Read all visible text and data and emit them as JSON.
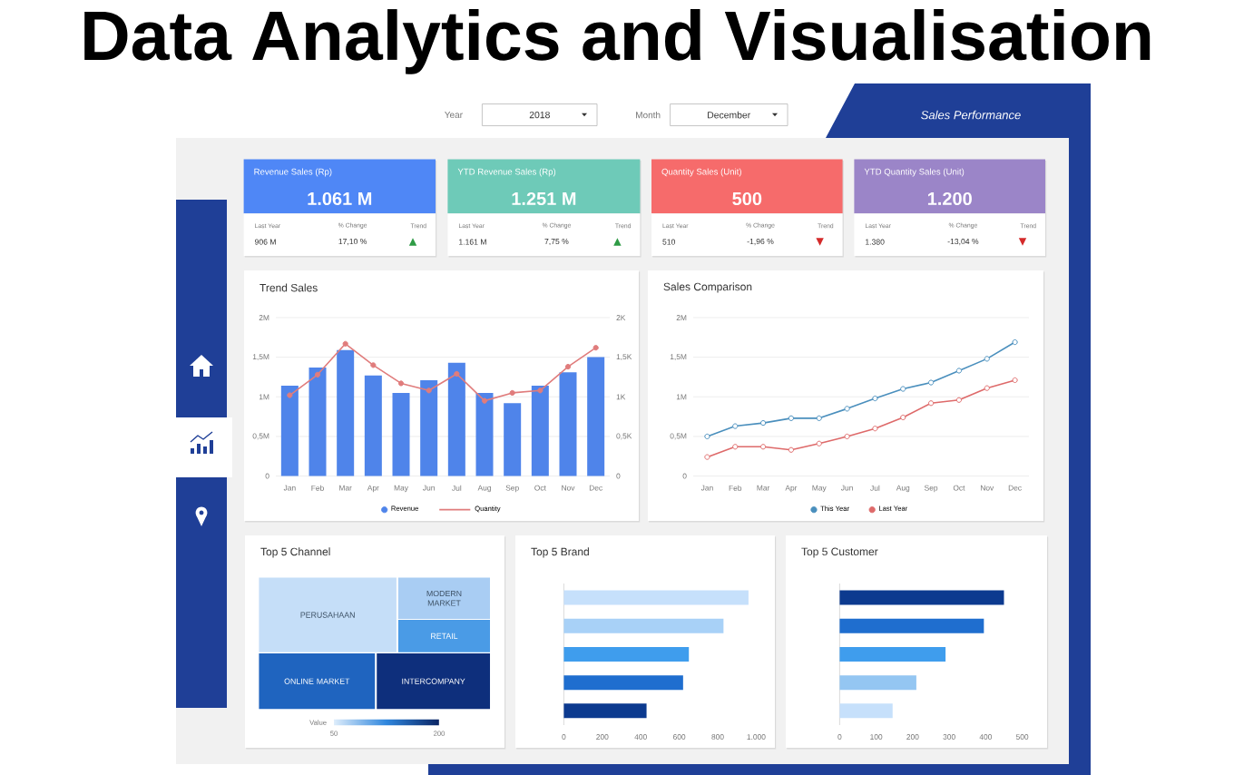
{
  "chart_data": [
    {
      "type": "other",
      "title": "Data Analytics and Visualisation",
      "annotations": [
        "Year",
        "2018",
        "Month",
        "December",
        "Sales Performance"
      ]
    },
    {
      "type": "other",
      "title": "Revenue Sales (Rp)",
      "annotations": [
        "1.061 M",
        "Last Year",
        "906 M",
        "% Change",
        "17,10 %",
        "Trend",
        "▲"
      ],
      "colors": [
        "#4f87f6",
        "#2e9b45"
      ]
    },
    {
      "type": "other",
      "title": "YTD Revenue Sales (Rp)",
      "annotations": [
        "1.251 M",
        "Last Year",
        "1.161 M",
        "% Change",
        "7,75 %",
        "Trend",
        "▲"
      ],
      "colors": [
        "#6ecab8",
        "#2e9b45"
      ]
    },
    {
      "type": "other",
      "title": "Quantity Sales (Unit)",
      "annotations": [
        "500",
        "Last Year",
        "510",
        "% Change",
        "-1,96 %",
        "Trend",
        "▼"
      ],
      "colors": [
        "#f66b6b",
        "#d42a2a"
      ]
    },
    {
      "type": "other",
      "title": "YTD Quantity Sales (Unit)",
      "annotations": [
        "1.200",
        "Last Year",
        "1.380",
        "% Change",
        "-13,04 %",
        "Trend",
        "▼"
      ],
      "colors": [
        "#9b85c8",
        "#d42a2a"
      ]
    },
    {
      "type": "bar",
      "title": "Trend Sales",
      "categories": [
        "Jan",
        "Feb",
        "Mar",
        "Apr",
        "May",
        "Jun",
        "Jul",
        "Aug",
        "Sep",
        "Oct",
        "Nov",
        "Dec"
      ],
      "series": [
        {
          "name": "Revenue",
          "type": "bar",
          "color": "#4f84ea",
          "values": [
            1140000,
            1370000,
            1590000,
            1270000,
            1050000,
            1210000,
            1430000,
            1050000,
            920000,
            1140000,
            1310000,
            1500000
          ]
        },
        {
          "name": "Quantity",
          "type": "line",
          "axis": "y2",
          "color": "#e07c7c",
          "values": [
            1020,
            1280,
            1670,
            1400,
            1170,
            1080,
            1290,
            950,
            1050,
            1080,
            1380,
            1620
          ]
        }
      ],
      "ylim": [
        0,
        2000000
      ],
      "yticks": [
        0,
        {
          "value": 500000,
          "label": "0,5M"
        },
        {
          "value": 1000000,
          "label": "1M"
        },
        {
          "value": 1500000,
          "label": "1,5M"
        },
        {
          "value": 2000000,
          "label": "2M"
        }
      ],
      "y2lim": [
        0,
        2000
      ],
      "y2ticks": [
        0,
        {
          "value": 500,
          "label": "0,5K"
        },
        {
          "value": 1000,
          "label": "1K"
        },
        {
          "value": 1500,
          "label": "1,5K"
        },
        {
          "value": 2000,
          "label": "2K"
        }
      ],
      "grid": "y",
      "legend": "bottom",
      "marker": "circle"
    },
    {
      "type": "line",
      "title": "Sales Comparison",
      "categories": [
        "Jan",
        "Feb",
        "Mar",
        "Apr",
        "May",
        "Jun",
        "Jul",
        "Aug",
        "Sep",
        "Oct",
        "Nov",
        "Dec"
      ],
      "series": [
        {
          "name": "This Year",
          "color": "#4a8fbd",
          "values": [
            500000,
            630000,
            670000,
            730000,
            730000,
            850000,
            980000,
            1100000,
            1180000,
            1330000,
            1480000,
            1690000
          ]
        },
        {
          "name": "Last Year",
          "color": "#de6a6a",
          "values": [
            240000,
            370000,
            370000,
            330000,
            410000,
            500000,
            600000,
            740000,
            920000,
            960000,
            1110000,
            1210000
          ]
        }
      ],
      "ylim": [
        0,
        2000000
      ],
      "yticks": [
        0,
        {
          "value": 500000,
          "label": "0,5M"
        },
        {
          "value": 1000000,
          "label": "1M"
        },
        {
          "value": 1500000,
          "label": "1,5M"
        },
        {
          "value": 2000000,
          "label": "2M"
        }
      ],
      "grid": "y",
      "legend": "bottom",
      "marker": "circle"
    },
    {
      "type": "other",
      "title": "Top 5 Channel",
      "categories": [
        "PERUSAHAAN",
        "MODERN MARKET",
        "RETAIL",
        "ONLINE MARKET",
        "INTERCOMPANY"
      ],
      "colors": [
        "#c5def8",
        "#a9cdf3",
        "#4a9be6",
        "#1f64bf",
        "#0e2f7c"
      ],
      "clabel": "Value",
      "annotations": [
        "50",
        "200"
      ]
    },
    {
      "type": "bar",
      "orientation": "horizontal",
      "title": "Top 5 Brand",
      "categories": [
        null,
        null,
        null,
        null,
        null
      ],
      "values": [
        960,
        830,
        650,
        620,
        430
      ],
      "colors": [
        "#c6e0fb",
        "#a8d1f7",
        "#3f9ded",
        "#1f6ecf",
        "#0c3a8f"
      ],
      "xlim": [
        0,
        1000
      ],
      "xticks": [
        0,
        200,
        400,
        600,
        800,
        {
          "value": 1000,
          "label": "1.000"
        }
      ]
    },
    {
      "type": "bar",
      "orientation": "horizontal",
      "title": "Top 5 Customer",
      "categories": [
        null,
        null,
        null,
        null,
        null
      ],
      "values": [
        450,
        395,
        290,
        210,
        145
      ],
      "colors": [
        "#0c3a8f",
        "#1f6ecf",
        "#3f9ded",
        "#94c6f2",
        "#c6e0fb"
      ],
      "xlim": [
        0,
        500
      ],
      "xticks": [
        0,
        100,
        200,
        300,
        400,
        500
      ]
    }
  ]
}
